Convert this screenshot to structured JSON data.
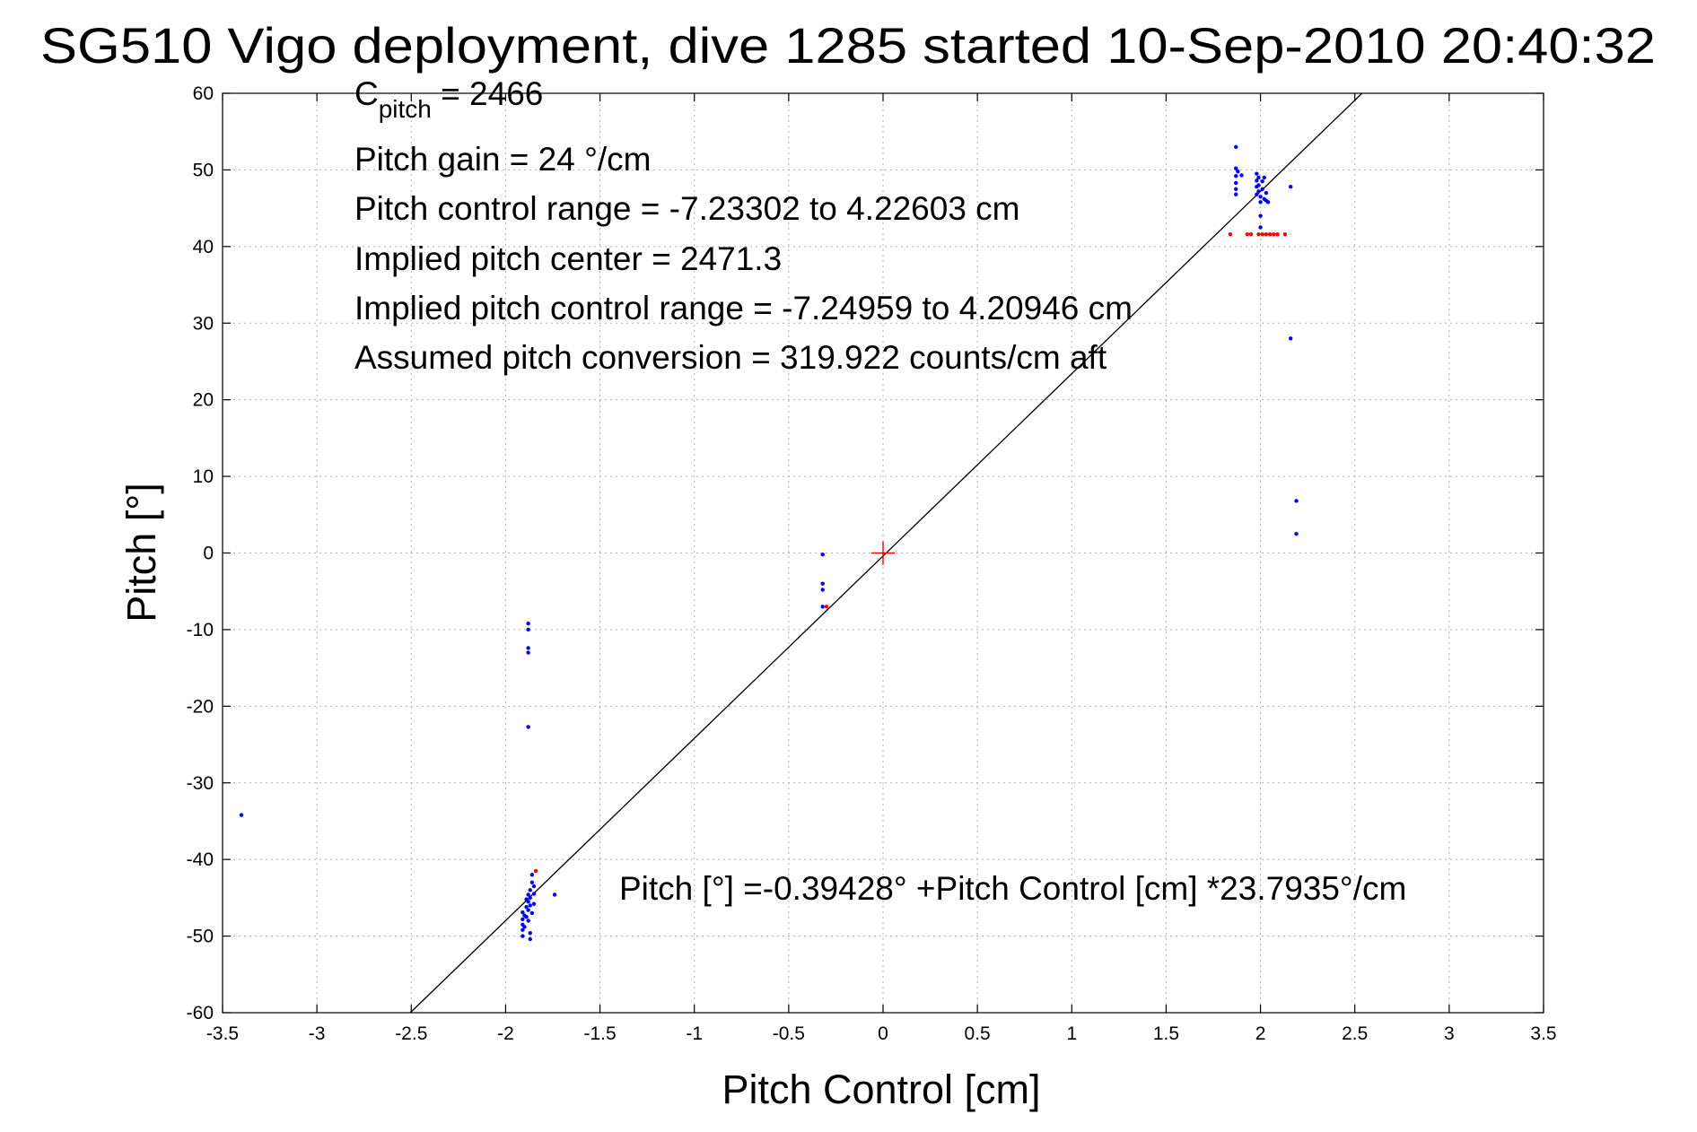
{
  "chart_data": {
    "type": "scatter",
    "title": "SG510 Vigo deployment, dive 1285 started 10-Sep-2010 20:40:32",
    "xlabel": "Pitch Control [cm]",
    "ylabel": "Pitch [°]",
    "xlim": [
      -3.5,
      3.5
    ],
    "ylim": [
      -60,
      60
    ],
    "xticks": [
      "-3.5",
      "-3",
      "-2.5",
      "-2",
      "-1.5",
      "-1",
      "-0.5",
      "0",
      "0.5",
      "1",
      "1.5",
      "2",
      "2.5",
      "3",
      "3.5"
    ],
    "yticks": [
      "60",
      "50",
      "40",
      "30",
      "20",
      "10",
      "0",
      "-10",
      "-20",
      "-30",
      "-40",
      "-50",
      "-60"
    ],
    "grid": true,
    "annotations": {
      "c_pitch_base": "C",
      "c_pitch_sub": "pitch",
      "c_pitch_value": " = 2466",
      "lines": [
        "Pitch gain = 24 °/cm",
        "Pitch control range = -7.23302 to 4.22603 cm",
        "Implied pitch center = 2471.3",
        "Implied pitch control range = -7.24959 to 4.20946 cm",
        "Assumed pitch conversion = 319.922 counts/cm aft"
      ],
      "fit_equation": "Pitch [°] =-0.39428° +Pitch Control [cm] *23.7935°/cm"
    },
    "fit_line": {
      "intercept": -0.39428,
      "slope": 23.7935,
      "color": "#000000"
    },
    "center_marker": {
      "x": 0,
      "y": 0,
      "color": "#ff0000"
    },
    "series": [
      {
        "color": "#0000ff",
        "points": [
          [
            -3.4,
            -34.2
          ],
          [
            -1.88,
            -9.2
          ],
          [
            -1.88,
            -10.0
          ],
          [
            -1.88,
            -12.4
          ],
          [
            -1.88,
            -13.0
          ],
          [
            -1.88,
            -22.7
          ],
          [
            -1.91,
            -47.8
          ],
          [
            -1.91,
            -48.5
          ],
          [
            -1.91,
            -49.2
          ],
          [
            -1.91,
            -50.0
          ],
          [
            -1.91,
            -46.9
          ],
          [
            -1.9,
            -47.3
          ],
          [
            -1.9,
            -48.8
          ],
          [
            -1.89,
            -45.2
          ],
          [
            -1.89,
            -46.2
          ],
          [
            -1.89,
            -47.5
          ],
          [
            -1.88,
            -44.6
          ],
          [
            -1.88,
            -45.5
          ],
          [
            -1.88,
            -46.6
          ],
          [
            -1.88,
            -48.0
          ],
          [
            -1.87,
            -44.0
          ],
          [
            -1.87,
            -45.0
          ],
          [
            -1.87,
            -46.0
          ],
          [
            -1.86,
            -43.0
          ],
          [
            -1.86,
            -42.0
          ],
          [
            -1.86,
            -47.0
          ],
          [
            -1.85,
            -43.5
          ],
          [
            -1.85,
            -44.5
          ],
          [
            -1.85,
            -45.8
          ],
          [
            -1.87,
            -49.6
          ],
          [
            -1.87,
            -50.4
          ],
          [
            -1.74,
            -44.6
          ],
          [
            -0.32,
            -0.2
          ],
          [
            -0.32,
            -4.0
          ],
          [
            -0.32,
            -4.8
          ],
          [
            -0.32,
            -7.0
          ],
          [
            1.87,
            53.0
          ],
          [
            1.87,
            50.2
          ],
          [
            1.87,
            49.2
          ],
          [
            1.87,
            48.3
          ],
          [
            1.87,
            47.5
          ],
          [
            1.87,
            46.8
          ],
          [
            1.88,
            49.8
          ],
          [
            1.9,
            49.3
          ],
          [
            1.98,
            49.5
          ],
          [
            1.98,
            48.6
          ],
          [
            1.98,
            47.8
          ],
          [
            1.98,
            46.8
          ],
          [
            1.99,
            49.0
          ],
          [
            1.99,
            48.0
          ],
          [
            1.99,
            47.2
          ],
          [
            2.0,
            46.5
          ],
          [
            2.0,
            45.8
          ],
          [
            2.01,
            48.5
          ],
          [
            2.01,
            47.5
          ],
          [
            2.02,
            49.0
          ],
          [
            2.02,
            46.2
          ],
          [
            2.03,
            47.0
          ],
          [
            2.03,
            46.0
          ],
          [
            2.04,
            45.8
          ],
          [
            2.0,
            44.0
          ],
          [
            2.0,
            42.5
          ],
          [
            2.16,
            47.8
          ],
          [
            2.16,
            28.0
          ],
          [
            2.19,
            6.8
          ],
          [
            2.19,
            2.5
          ]
        ]
      },
      {
        "color": "#ff0000",
        "points": [
          [
            -1.84,
            -41.5
          ],
          [
            -0.3,
            -7.0
          ],
          [
            1.84,
            41.6
          ],
          [
            1.93,
            41.6
          ],
          [
            1.95,
            41.6
          ],
          [
            1.99,
            41.6
          ],
          [
            2.01,
            41.6
          ],
          [
            2.03,
            41.6
          ],
          [
            2.05,
            41.6
          ],
          [
            2.07,
            41.6
          ],
          [
            2.09,
            41.6
          ],
          [
            2.13,
            41.6
          ]
        ]
      }
    ]
  }
}
